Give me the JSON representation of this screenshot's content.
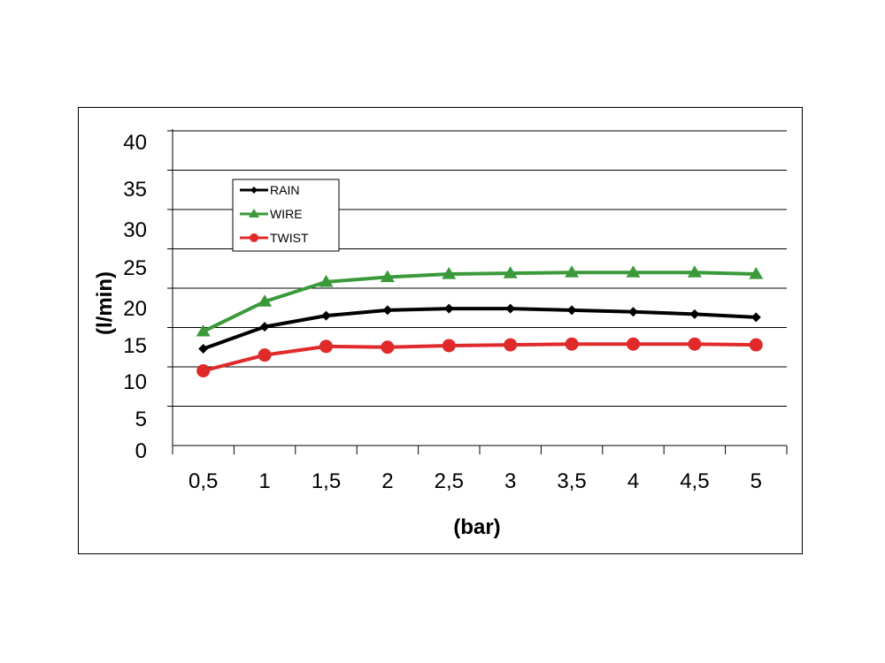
{
  "chart_data": {
    "type": "line",
    "title": "",
    "xlabel": "(bar)",
    "ylabel": "(l/min)",
    "x": [
      "0,5",
      "1",
      "1,5",
      "2",
      "2,5",
      "3",
      "3,5",
      "4",
      "4,5",
      "5"
    ],
    "y_ticks": [
      "0",
      "5",
      "10",
      "15",
      "20",
      "25",
      "30",
      "35",
      "40"
    ],
    "ylim": [
      0,
      40
    ],
    "grid": "horizontal",
    "legend_position": "top-left",
    "series": [
      {
        "name": "RAIN",
        "color": "#000000",
        "marker": "diamond",
        "values": [
          12.3,
          15.1,
          16.5,
          17.2,
          17.4,
          17.4,
          17.2,
          17.0,
          16.7,
          16.3
        ]
      },
      {
        "name": "WIRE",
        "color": "#3a9a3a",
        "marker": "triangle",
        "values": [
          14.5,
          18.3,
          20.8,
          21.4,
          21.8,
          21.9,
          22.0,
          22.0,
          22.0,
          21.8
        ]
      },
      {
        "name": "TWIST",
        "color": "#e02a2a",
        "marker": "circle",
        "values": [
          9.5,
          11.5,
          12.6,
          12.5,
          12.7,
          12.8,
          12.9,
          12.9,
          12.9,
          12.8
        ]
      }
    ]
  }
}
